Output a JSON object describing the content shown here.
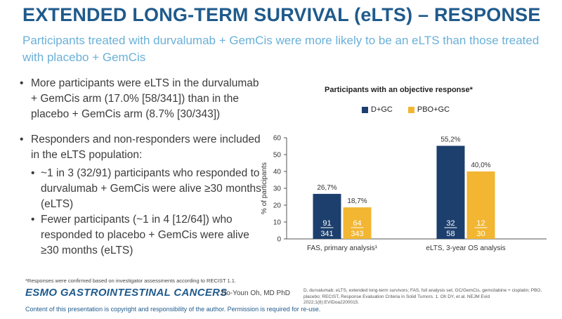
{
  "slide": {
    "title": "EXTENDED LONG-TERM SURVIVAL (eLTS) – RESPONSE",
    "subtitle": "Participants treated with durvalumab + GemCis were more likely to be an eLTS than those treated with placebo + GemCis"
  },
  "bullets": {
    "b1": "More participants were eLTS in the durvalumab + GemCis arm (17.0% [58/341]) than in the placebo + GemCis arm (8.7% [30/343])",
    "b2": "Responders and non-responders were included in the eLTS population:",
    "b2_sub1": "~1 in 3 (32/91) participants who responded to durvalumab + GemCis were alive ≥30 months (eLTS)",
    "b2_sub2": "Fewer participants (~1 in 4 [12/64]) who responded to placebo + GemCis were alive ≥30 months (eLTS)"
  },
  "chart_data": {
    "type": "bar",
    "title": "Participants with an objective response*",
    "ylabel": "% of participants",
    "ylim": [
      0,
      60
    ],
    "yticks": [
      0,
      10,
      20,
      30,
      40,
      50,
      60
    ],
    "categories": [
      "FAS, primary analysis¹",
      "eLTS, 3-year OS analysis"
    ],
    "series": [
      {
        "name": "D+GC",
        "color": "#1c3f6e",
        "values": [
          26.7,
          55.2
        ],
        "value_labels": [
          "26,7%",
          "55,2%"
        ],
        "numerators": [
          "91",
          "32"
        ],
        "denominators": [
          "341",
          "58"
        ]
      },
      {
        "name": "PBO+GC",
        "color": "#f2b632",
        "values": [
          18.7,
          40.0
        ],
        "value_labels": [
          "18,7%",
          "40,0%"
        ],
        "numerators": [
          "64",
          "12"
        ],
        "denominators": [
          "343",
          "30"
        ]
      }
    ]
  },
  "footer": {
    "footnote": "*Responses were confirmed based on investigator assessments according to RECIST 1.1.",
    "logo": "ESMO GASTROINTESTINAL CANCERS",
    "author": "Do-Youn Oh, MD PhD",
    "copyright": "Content of this presentation is copyright and responsibility of the author. Permission is required for re-use.",
    "refs": "D, durvalumab; eLTS, extended long-term survivors; FAS, full analysis set; GC/GemCis, gemcitabine + cisplatin; PBO, placebo; RECIST, Response Evaluation Criteria in Solid Tumors. 1. Oh DY, et al. NEJM Evid 2022;1(8):EVIDoa2200015."
  }
}
